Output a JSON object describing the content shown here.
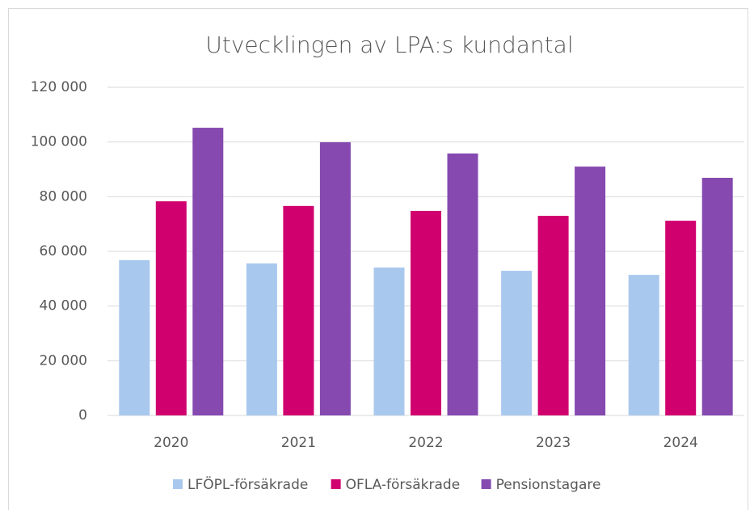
{
  "chart_data": {
    "type": "bar",
    "title": "Utvecklingen av LPA:s kundantal",
    "categories": [
      "2020",
      "2021",
      "2022",
      "2023",
      "2024"
    ],
    "series": [
      {
        "name": "LFÖPL-försäkrade",
        "color": "#a9c8ee",
        "values": [
          56800,
          55600,
          54100,
          52900,
          51400
        ]
      },
      {
        "name": "OFLA-försäkrade",
        "color": "#d0006f",
        "values": [
          78300,
          76600,
          74800,
          73000,
          71200
        ]
      },
      {
        "name": "Pensionstagare",
        "color": "#8549b0",
        "values": [
          105200,
          99900,
          95800,
          91000,
          86900
        ]
      }
    ],
    "ylim": [
      0,
      120000
    ],
    "yticks": [
      0,
      {
        "value": 20000,
        "label": "20 000"
      },
      {
        "value": 40000,
        "label": "40 000"
      },
      {
        "value": 60000,
        "label": "60 000"
      },
      {
        "value": 80000,
        "label": "80 000"
      },
      {
        "value": 100000,
        "label": "100 000"
      },
      {
        "value": 120000,
        "label": "120 000"
      }
    ],
    "grid": true,
    "legend": "bottom"
  }
}
